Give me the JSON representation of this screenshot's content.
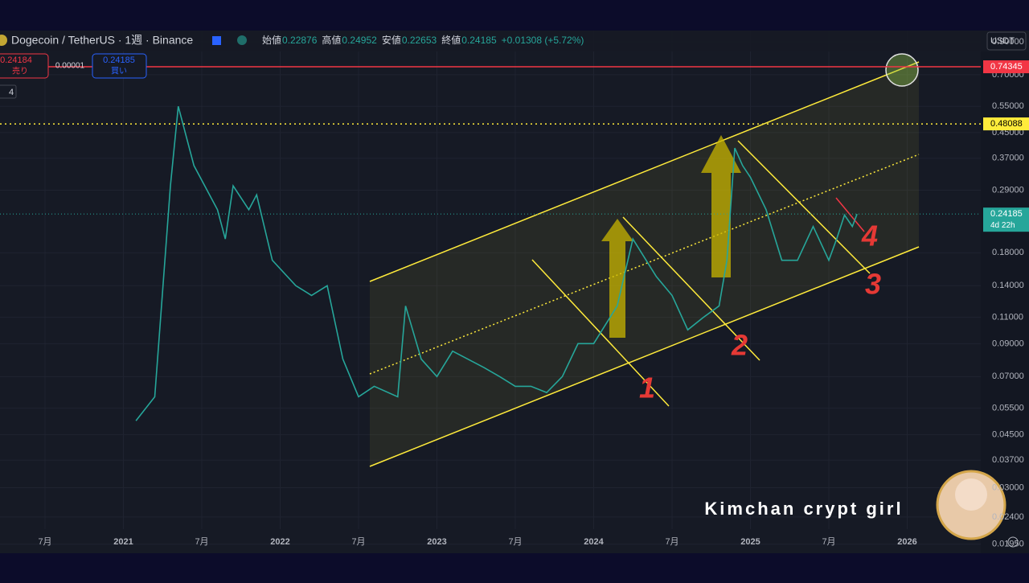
{
  "header": {
    "symbol": "Dogecoin / TetherUS · 1週 · Binance",
    "ohlc": [
      {
        "label": "始値",
        "value": "0.22876"
      },
      {
        "label": "高値",
        "value": "0.24952"
      },
      {
        "label": "安値",
        "value": "0.22653"
      },
      {
        "label": "終値",
        "value": "0.24185"
      }
    ],
    "change": "+0.01308 (+5.72%)"
  },
  "trade": {
    "sell_price": "0.24184",
    "sell_label": "売り",
    "spread": "0.00001",
    "buy_price": "0.24185",
    "buy_label": "買い"
  },
  "indicator_count": "4",
  "currency": "USDT",
  "chart": {
    "log_scale": true,
    "ylim": [
      0.0182,
      0.98
    ],
    "yticks": [
      {
        "value": 0.9,
        "label": "0.90000"
      },
      {
        "value": 0.7,
        "label": "0.70000"
      },
      {
        "value": 0.55,
        "label": "0.55000"
      },
      {
        "value": 0.45,
        "label": "0.45000"
      },
      {
        "value": 0.37,
        "label": "0.37000"
      },
      {
        "value": 0.29,
        "label": "0.29000"
      },
      {
        "value": 0.18,
        "label": "0.18000"
      },
      {
        "value": 0.14,
        "label": "0.14000"
      },
      {
        "value": 0.11,
        "label": "0.11000"
      },
      {
        "value": 0.09,
        "label": "0.09000"
      },
      {
        "value": 0.07,
        "label": "0.07000"
      },
      {
        "value": 0.055,
        "label": "0.05500"
      },
      {
        "value": 0.045,
        "label": "0.04500"
      },
      {
        "value": 0.037,
        "label": "0.03700"
      },
      {
        "value": 0.03,
        "label": "0.03000"
      },
      {
        "value": 0.024,
        "label": "0.02400"
      },
      {
        "value": 0.0195,
        "label": "0.01950"
      }
    ],
    "xlim": [
      2020.5,
      2026.5
    ],
    "xticks": [
      {
        "value": 2020.5,
        "label": "7月"
      },
      2021,
      {
        "value": 2021.5,
        "label": "7月"
      },
      2022,
      {
        "value": 2022.5,
        "label": "7月"
      },
      2023,
      {
        "value": 2023.5,
        "label": "7月"
      },
      2024,
      {
        "value": 2024.5,
        "label": "7月"
      },
      2025,
      {
        "value": 2025.5,
        "label": "7月"
      },
      2026
    ],
    "levels": [
      {
        "value": 0.74345,
        "color": "#f23645",
        "style": "solid"
      },
      {
        "value": 0.48088,
        "color": "#ffeb3b",
        "style": "dotted"
      }
    ],
    "last_price": {
      "value": 0.24185,
      "countdown": "4d 22h",
      "color": "#26a69a"
    },
    "price_line": {
      "color": "#26a69a",
      "x": [
        2021.08,
        2021.2,
        2021.3,
        2021.35,
        2021.45,
        2021.6,
        2021.65,
        2021.7,
        2021.8,
        2021.85,
        2021.95,
        2022.1,
        2022.2,
        2022.3,
        2022.4,
        2022.5,
        2022.6,
        2022.75,
        2022.8,
        2022.9,
        2023.0,
        2023.1,
        2023.3,
        2023.4,
        2023.5,
        2023.6,
        2023.7,
        2023.8,
        2023.9,
        2024.0,
        2024.15,
        2024.25,
        2024.4,
        2024.5,
        2024.6,
        2024.7,
        2024.8,
        2024.85,
        2024.9,
        2024.95,
        2025.0,
        2025.1,
        2025.2,
        2025.3,
        2025.4,
        2025.5,
        2025.55,
        2025.6,
        2025.65,
        2025.68
      ],
      "values": [
        0.05,
        0.06,
        0.3,
        0.55,
        0.35,
        0.25,
        0.2,
        0.3,
        0.25,
        0.28,
        0.17,
        0.14,
        0.13,
        0.14,
        0.08,
        0.06,
        0.065,
        0.06,
        0.12,
        0.08,
        0.07,
        0.085,
        0.075,
        0.07,
        0.065,
        0.065,
        0.062,
        0.07,
        0.09,
        0.09,
        0.12,
        0.2,
        0.15,
        0.13,
        0.1,
        0.11,
        0.12,
        0.17,
        0.4,
        0.35,
        0.32,
        0.25,
        0.17,
        0.17,
        0.22,
        0.17,
        0.2,
        0.24,
        0.22,
        0.24185
      ]
    },
    "annotations": [
      "1",
      "2",
      "3",
      "4"
    ],
    "watermark": "Kimchan crypt girl"
  }
}
